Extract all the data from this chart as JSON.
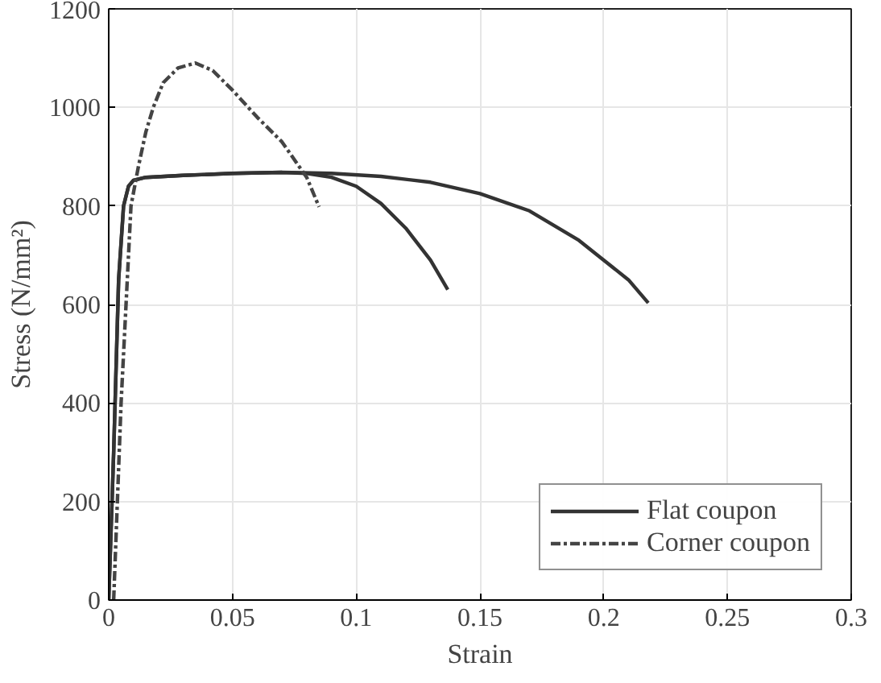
{
  "chart_data": {
    "type": "line",
    "xlabel": "Strain",
    "ylabel": "Stress (N/mm²)",
    "xlim": [
      0,
      0.3
    ],
    "ylim": [
      0,
      1200
    ],
    "xticks": [
      0,
      0.05,
      0.1,
      0.15,
      0.2,
      0.25,
      0.3
    ],
    "yticks": [
      0,
      200,
      400,
      600,
      800,
      1000,
      1200
    ],
    "grid": true,
    "legend": "bottom right",
    "series": [
      {
        "name": "Flat coupon",
        "color": "#333333",
        "line_style": "solid",
        "x": [
          0,
          0.002,
          0.004,
          0.006,
          0.008,
          0.01,
          0.015,
          0.03,
          0.05,
          0.07,
          0.08,
          0.09,
          0.1,
          0.11,
          0.12,
          0.13,
          0.137
        ],
        "values": [
          0,
          300,
          650,
          800,
          840,
          852,
          858,
          862,
          866,
          868,
          866,
          858,
          840,
          805,
          755,
          690,
          630
        ]
      },
      {
        "color": "#333333",
        "line_style": "solid",
        "x": [
          0,
          0.002,
          0.004,
          0.006,
          0.008,
          0.01,
          0.015,
          0.03,
          0.05,
          0.07,
          0.09,
          0.11,
          0.13,
          0.15,
          0.17,
          0.19,
          0.2,
          0.21,
          0.218
        ],
        "values": [
          0,
          300,
          650,
          800,
          840,
          852,
          858,
          862,
          866,
          868,
          866,
          860,
          848,
          825,
          790,
          730,
          690,
          650,
          603
        ]
      },
      {
        "name": "Corner coupon",
        "color": "#444444",
        "line_style": "dashed",
        "x": [
          0.002,
          0.005,
          0.009,
          0.012,
          0.015,
          0.018,
          0.022,
          0.028,
          0.035,
          0.042,
          0.05,
          0.06,
          0.07,
          0.08,
          0.085
        ],
        "values": [
          0,
          400,
          800,
          880,
          950,
          1000,
          1050,
          1080,
          1090,
          1075,
          1035,
          980,
          930,
          858,
          798
        ]
      }
    ]
  }
}
